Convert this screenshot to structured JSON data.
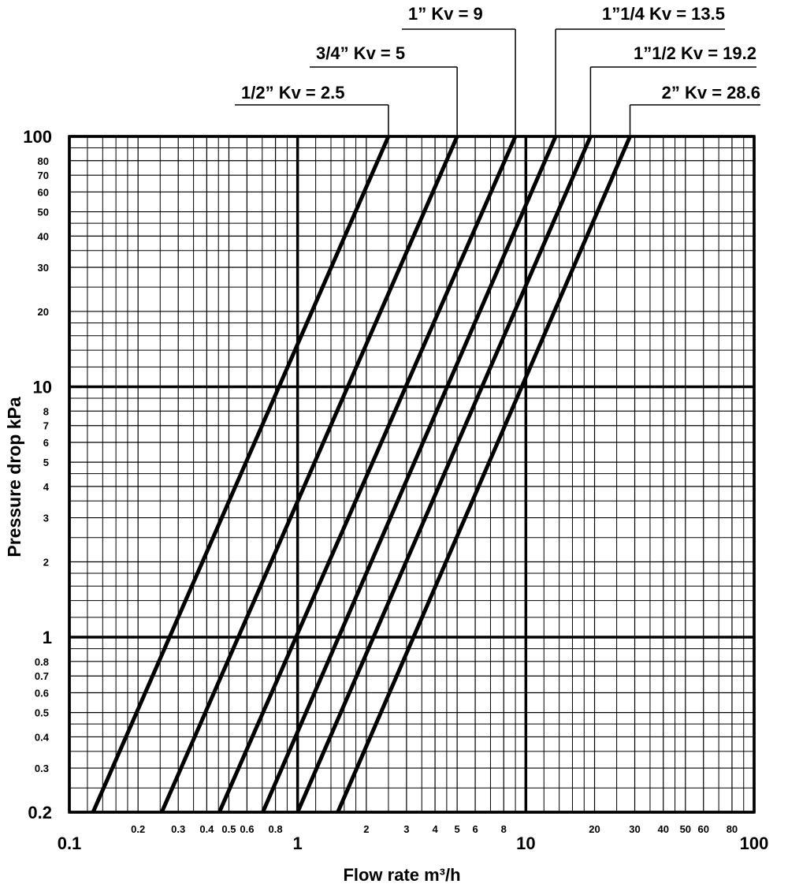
{
  "chart_data": {
    "type": "line",
    "log_x": true,
    "log_y": true,
    "color": "#000000",
    "x_label": "Flow rate m³/h",
    "y_label": "Pressure drop  kPa",
    "xlim": [
      0.1,
      100
    ],
    "ylim": [
      0.2,
      100
    ],
    "xticks": [
      0.1,
      1,
      10,
      100
    ],
    "xticks_minor": [
      0.2,
      0.3,
      0.4,
      0.5,
      0.6,
      0.8,
      2,
      3,
      4,
      5,
      6,
      8,
      20,
      30,
      40,
      50,
      60,
      80
    ],
    "xgrid": [
      0.12,
      0.14,
      0.16,
      0.18,
      0.25,
      0.35,
      0.45,
      0.7,
      0.9,
      1.2,
      1.4,
      1.6,
      1.8,
      2.5,
      3.5,
      4.5,
      7,
      9,
      12,
      14,
      16,
      18,
      25,
      35,
      45,
      70,
      90
    ],
    "yticks": [
      0.2,
      1,
      10,
      100
    ],
    "yticks_minor": [
      0.3,
      0.4,
      0.5,
      0.6,
      0.7,
      0.8,
      2,
      3,
      4,
      5,
      6,
      7,
      8,
      20,
      30,
      40,
      50,
      60,
      70,
      80
    ],
    "ygrid": [
      0.25,
      0.35,
      0.45,
      0.9,
      1.2,
      1.4,
      1.6,
      1.8,
      2.5,
      3.5,
      4.5,
      9,
      12,
      14,
      16,
      18,
      25,
      35,
      45,
      90
    ],
    "series": [
      {
        "name": "1/2” Kv = 2.5",
        "color": "#000000",
        "x": [
          0.127,
          2.5
        ],
        "values": [
          0.2,
          100
        ]
      },
      {
        "name": "3/4” Kv = 5",
        "color": "#000000",
        "x": [
          0.254,
          5
        ],
        "values": [
          0.2,
          100
        ]
      },
      {
        "name": "1” Kv = 9",
        "color": "#000000",
        "x": [
          0.454,
          9
        ],
        "values": [
          0.2,
          100
        ]
      },
      {
        "name": "1”1/4 Kv = 13.5",
        "color": "#000000",
        "x": [
          0.704,
          13.5
        ],
        "values": [
          0.2,
          100
        ]
      },
      {
        "name": "1”1/2 Kv = 19.2",
        "color": "#000000",
        "x": [
          1.0,
          19.2
        ],
        "values": [
          0.2,
          100
        ]
      },
      {
        "name": "2” Kv = 28.6",
        "color": "#000000",
        "x": [
          1.5,
          28.6
        ],
        "values": [
          0.2,
          100
        ]
      }
    ]
  }
}
